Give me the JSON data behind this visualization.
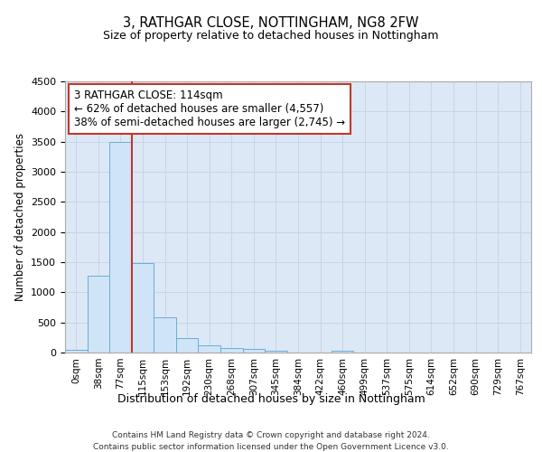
{
  "title1": "3, RATHGAR CLOSE, NOTTINGHAM, NG8 2FW",
  "title2": "Size of property relative to detached houses in Nottingham",
  "xlabel": "Distribution of detached houses by size in Nottingham",
  "ylabel": "Number of detached properties",
  "categories": [
    "0sqm",
    "38sqm",
    "77sqm",
    "115sqm",
    "153sqm",
    "192sqm",
    "230sqm",
    "268sqm",
    "307sqm",
    "345sqm",
    "384sqm",
    "422sqm",
    "460sqm",
    "499sqm",
    "537sqm",
    "575sqm",
    "614sqm",
    "652sqm",
    "690sqm",
    "729sqm",
    "767sqm"
  ],
  "values": [
    50,
    1280,
    3500,
    1480,
    580,
    240,
    120,
    80,
    55,
    30,
    0,
    0,
    30,
    0,
    0,
    0,
    0,
    0,
    0,
    0,
    0
  ],
  "bar_color": "#d0e4f7",
  "bar_edge_color": "#6aaed6",
  "vline_color": "#c0392b",
  "annotation_line1": "3 RATHGAR CLOSE: 114sqm",
  "annotation_line2": "← 62% of detached houses are smaller (4,557)",
  "annotation_line3": "38% of semi-detached houses are larger (2,745) →",
  "annotation_box_color": "#c0392b",
  "ylim": [
    0,
    4500
  ],
  "yticks": [
    0,
    500,
    1000,
    1500,
    2000,
    2500,
    3000,
    3500,
    4000,
    4500
  ],
  "grid_color": "#c8d4e8",
  "bg_color": "#dce8f5",
  "footer1": "Contains HM Land Registry data © Crown copyright and database right 2024.",
  "footer2": "Contains public sector information licensed under the Open Government Licence v3.0."
}
